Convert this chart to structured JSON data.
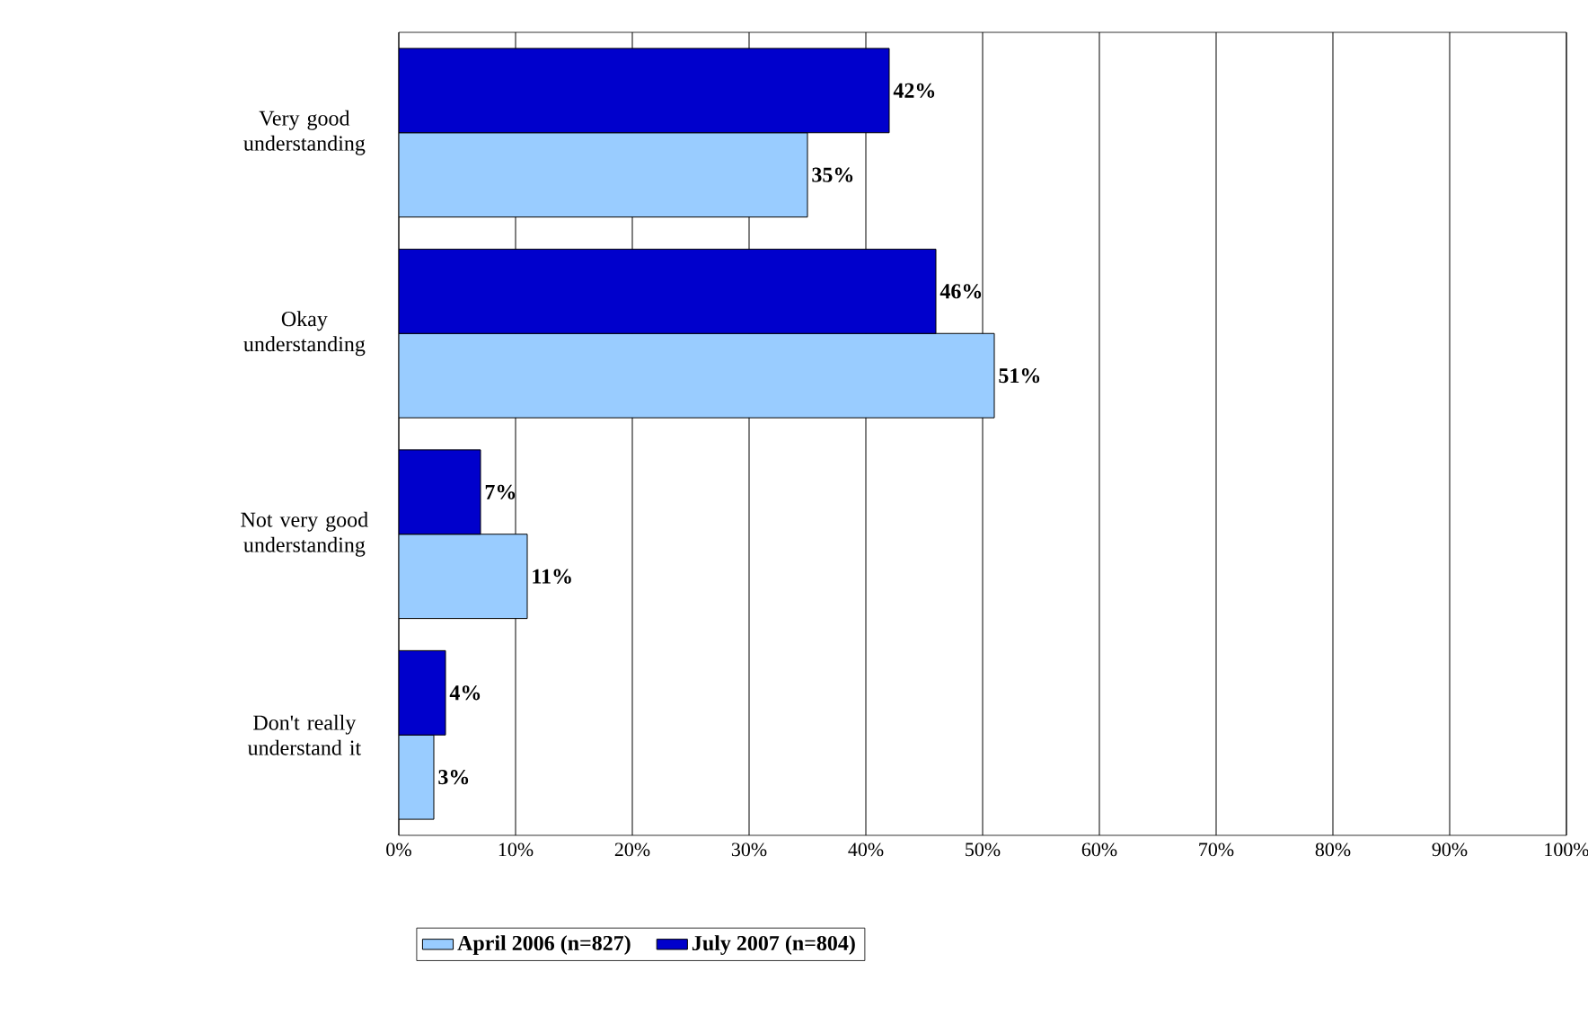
{
  "chart_data": {
    "type": "bar",
    "orientation": "horizontal",
    "categories": [
      "Very good understanding",
      "Okay understanding",
      "Not very good understanding",
      "Don't really understand it"
    ],
    "series": [
      {
        "name": "April 2006 (n=827)",
        "color": "#99ccff",
        "values": [
          35,
          51,
          11,
          3
        ],
        "value_labels": [
          "35%",
          "51%",
          "11%",
          "3%"
        ]
      },
      {
        "name": "July 2007 (n=804)",
        "color": "#0000cc",
        "values": [
          42,
          46,
          7,
          4
        ],
        "value_labels": [
          "42%",
          "46%",
          "7%",
          "4%"
        ]
      }
    ],
    "xlim": [
      0,
      100
    ],
    "xticks": [
      {
        "value": 0,
        "label": "0%"
      },
      {
        "value": 10,
        "label": "10%"
      },
      {
        "value": 20,
        "label": "20%"
      },
      {
        "value": 30,
        "label": "30%"
      },
      {
        "value": 40,
        "label": "40%"
      },
      {
        "value": 50,
        "label": "50%"
      },
      {
        "value": 60,
        "label": "60%"
      },
      {
        "value": 70,
        "label": "70%"
      },
      {
        "value": 80,
        "label": "80%"
      },
      {
        "value": 90,
        "label": "90%"
      },
      {
        "value": 100,
        "label": "100%"
      }
    ],
    "grid": "x",
    "legend": "bottom"
  }
}
